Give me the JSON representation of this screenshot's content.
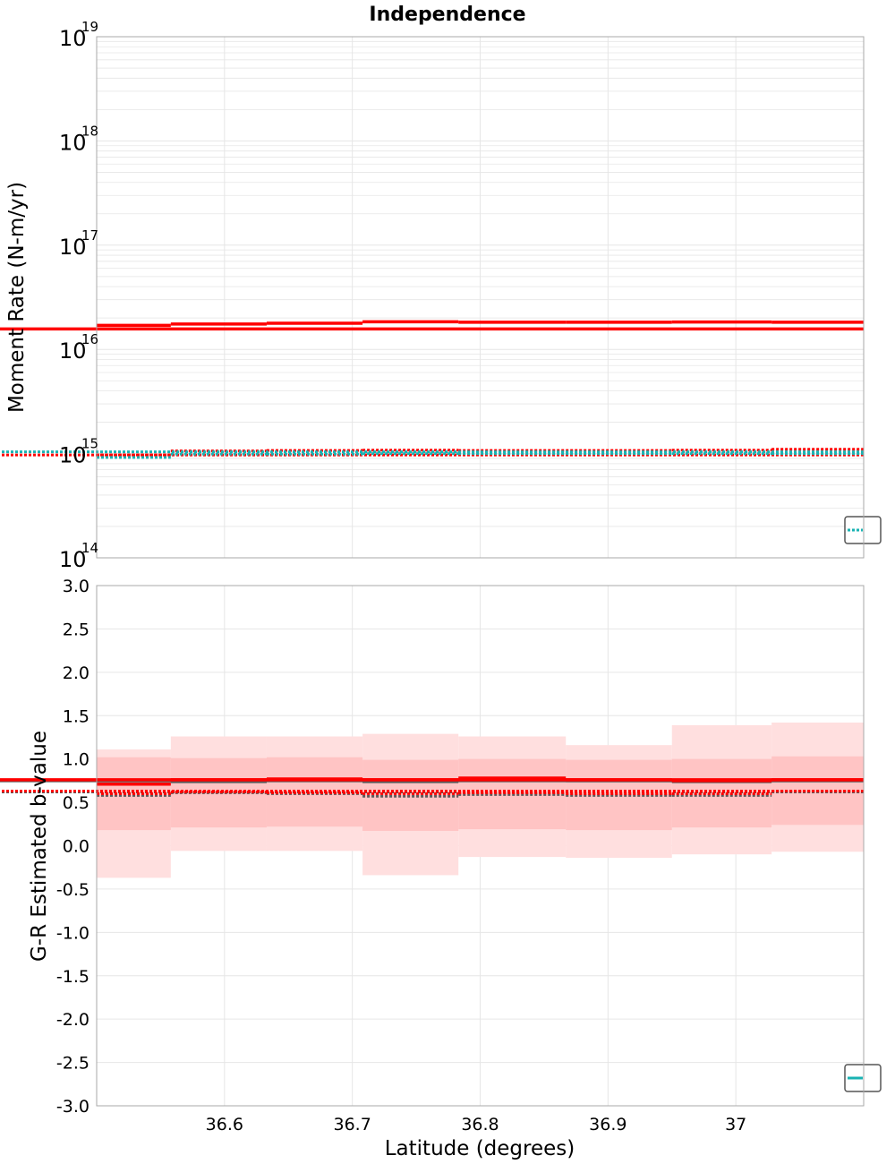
{
  "title": "Independence",
  "colors": {
    "red": "#ff0000",
    "teal": "#19b3b3",
    "gray": "#5a5a5a",
    "band_inner": "#ffc4c4",
    "band_outer": "#ffdfdf",
    "grid": "#e6e6e6",
    "frame": "#a8a8a8"
  },
  "chart_data": [
    {
      "type": "line",
      "name": "moment-rate",
      "ylabel": "Moment Rate (N-m/yr)",
      "yscale": "log",
      "ylim_exp": [
        14,
        19
      ],
      "log_ticks": [
        {
          "base": "10",
          "exp": "14",
          "value": 14
        },
        {
          "base": "10",
          "exp": "15",
          "value": 15
        },
        {
          "base": "10",
          "exp": "16",
          "value": 16
        },
        {
          "base": "10",
          "exp": "17",
          "value": 17
        },
        {
          "base": "10",
          "exp": "18",
          "value": 18
        },
        {
          "base": "10",
          "exp": "19",
          "value": 19
        }
      ],
      "xlim": [
        36.5,
        37.1
      ],
      "bin_edges": [
        36.5,
        36.558,
        36.633,
        36.708,
        36.783,
        36.867,
        36.95,
        37.028,
        37.1
      ],
      "series": [
        {
          "name": "red-solid",
          "style": "solid",
          "color": "red",
          "values": [
            1.7e+16,
            1.75e+16,
            1.78e+16,
            1.84e+16,
            1.82e+16,
            1.82e+16,
            1.83e+16,
            1.82e+16,
            1.57e+16
          ]
        },
        {
          "name": "red-dotted",
          "style": "dotted",
          "color": "red",
          "values": [
            970000000000000.0,
            1060000000000000.0,
            1070000000000000.0,
            1080000000000000.0,
            1070000000000000.0,
            1070000000000000.0,
            1080000000000000.0,
            1100000000000000.0,
            970000000000000.0
          ]
        },
        {
          "name": "teal-dotted",
          "style": "dotted",
          "color": "teal",
          "values": [
            920000000000000.0,
            990000000000000.0,
            990000000000000.0,
            1000000000000000.0,
            1000000000000000.0,
            1000000000000000.0,
            1000000000000000.0,
            1000000000000000.0,
            1040000000000000.0
          ]
        }
      ]
    },
    {
      "type": "line",
      "name": "b-value",
      "xlabel": "Latitude (degrees)",
      "ylabel": "G-R Estimated b-value",
      "ylim": [
        -3.0,
        3.0
      ],
      "yticks": [
        "3.0",
        "2.5",
        "2.0",
        "1.5",
        "1.0",
        "0.5",
        "0.0",
        "-0.5",
        "-1.0",
        "-1.5",
        "-2.0",
        "-2.5",
        "-3.0"
      ],
      "xlim": [
        36.5,
        37.1
      ],
      "xticks": [
        "36.6",
        "36.7",
        "36.8",
        "36.9",
        "37"
      ],
      "bin_edges": [
        36.5,
        36.558,
        36.633,
        36.708,
        36.783,
        36.867,
        36.95,
        37.028,
        37.1
      ],
      "bands": [
        {
          "name": "outer-band",
          "color": "band_outer",
          "lower": [
            -0.37,
            -0.06,
            -0.06,
            -0.34,
            -0.13,
            -0.14,
            -0.1,
            -0.07,
            -0.07
          ],
          "upper": [
            1.11,
            1.26,
            1.26,
            1.29,
            1.26,
            1.16,
            1.39,
            1.42,
            1.42
          ]
        },
        {
          "name": "inner-band",
          "color": "band_inner",
          "lower": [
            0.18,
            0.21,
            0.22,
            0.17,
            0.19,
            0.18,
            0.21,
            0.24,
            0.24
          ],
          "upper": [
            1.02,
            1.01,
            1.02,
            0.99,
            1.0,
            0.99,
            1.0,
            1.03,
            1.03
          ]
        }
      ],
      "series": [
        {
          "name": "gray-solid",
          "style": "solid",
          "color": "gray",
          "values": [
            0.75,
            0.74,
            0.76,
            0.74,
            0.76,
            0.75,
            0.74,
            0.75,
            0.75
          ]
        },
        {
          "name": "red-solid",
          "style": "solid",
          "color": "red",
          "values": [
            0.71,
            0.76,
            0.77,
            0.76,
            0.78,
            0.76,
            0.75,
            0.76,
            0.76
          ]
        },
        {
          "name": "gray-dotted",
          "style": "dotted",
          "color": "gray",
          "values": [
            0.58,
            0.61,
            0.6,
            0.57,
            0.59,
            0.58,
            0.58,
            0.62,
            0.62
          ]
        },
        {
          "name": "red-dotted",
          "style": "dotted",
          "color": "red",
          "values": [
            0.6,
            0.62,
            0.61,
            0.6,
            0.61,
            0.6,
            0.6,
            0.63,
            0.63
          ]
        }
      ]
    }
  ],
  "legends": [
    {
      "name": "legend-top",
      "swatch_color": "teal",
      "swatch_style": "dotted"
    },
    {
      "name": "legend-bottom",
      "swatch_color": "teal",
      "swatch_style": "solid"
    }
  ]
}
